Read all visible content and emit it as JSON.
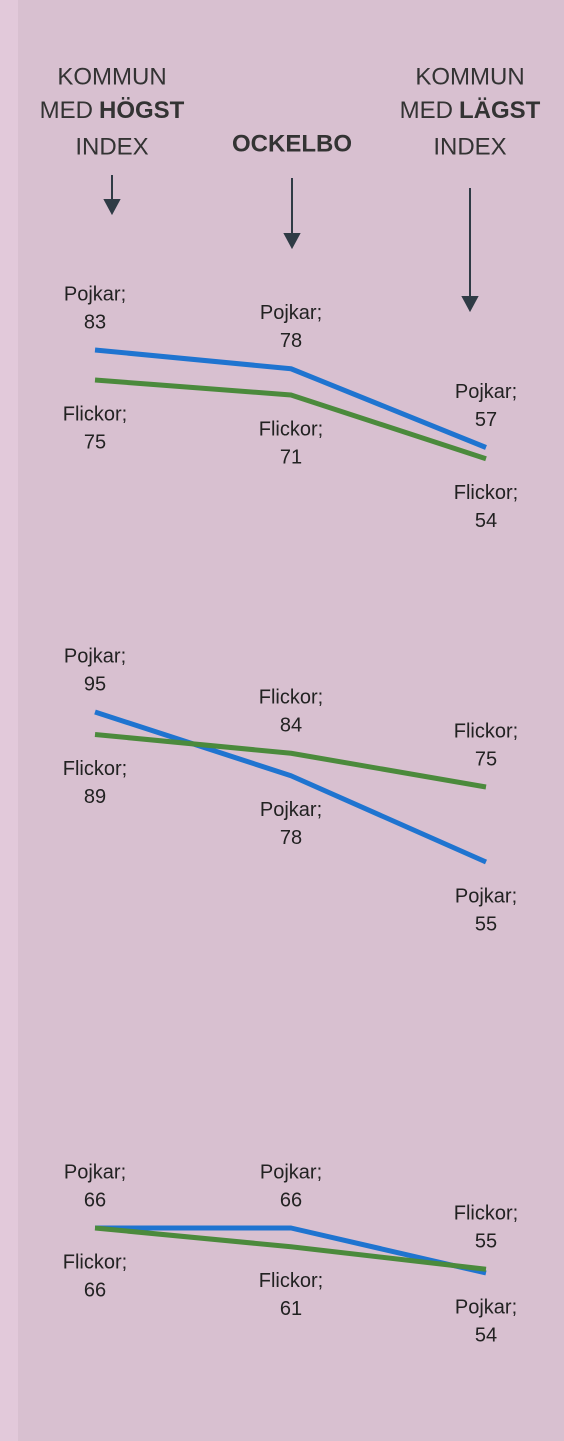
{
  "column_headers": [
    {
      "line1": "KOMMUN",
      "line2": "MED",
      "line2_bold": "HÖGST",
      "line3": "INDEX"
    },
    {
      "title": "OCKELBO"
    },
    {
      "line1": "KOMMUN",
      "line2": "MED",
      "line2_bold": "LÄGST",
      "line3": "INDEX"
    }
  ],
  "chart_data": [
    {
      "type": "line",
      "categories": [
        null,
        null,
        null
      ],
      "series": [
        {
          "name": "Pojkar;",
          "color": "#1f74d0",
          "values": [
            83,
            78,
            57
          ]
        },
        {
          "name": "Flickor;",
          "color": "#4b8a3c",
          "values": [
            75,
            71,
            54
          ]
        }
      ]
    },
    {
      "type": "line",
      "categories": [
        null,
        null,
        null
      ],
      "series": [
        {
          "name": "Pojkar;",
          "color": "#1f74d0",
          "values": [
            95,
            78,
            55
          ]
        },
        {
          "name": "Flickor;",
          "color": "#4b8a3c",
          "values": [
            89,
            84,
            75
          ]
        }
      ]
    },
    {
      "type": "line",
      "categories": [
        null,
        null,
        null
      ],
      "series": [
        {
          "name": "Pojkar;",
          "color": "#1f74d0",
          "values": [
            66,
            66,
            54
          ]
        },
        {
          "name": "Flickor;",
          "color": "#4b8a3c",
          "values": [
            66,
            61,
            55
          ]
        }
      ]
    }
  ]
}
